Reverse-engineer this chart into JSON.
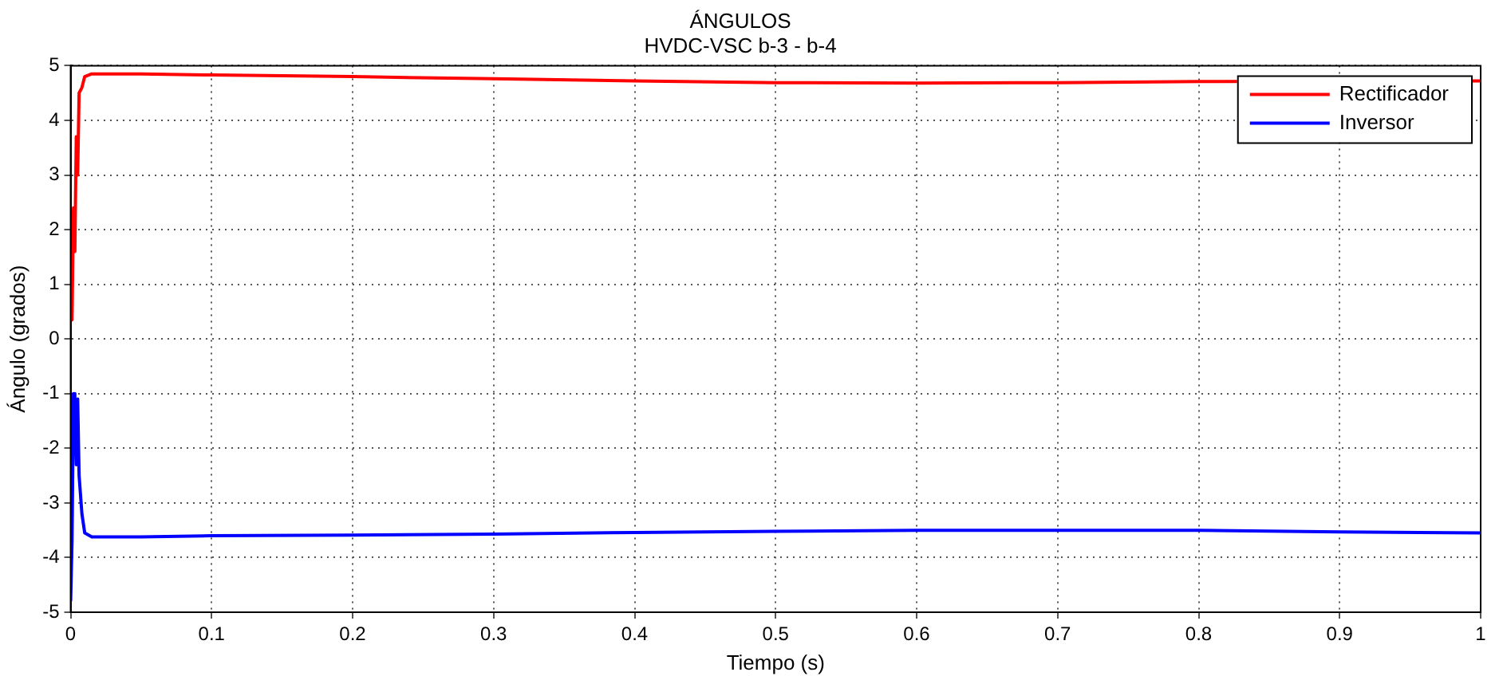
{
  "chart_data": {
    "type": "line",
    "title": "ÁNGULOS",
    "subtitle": "HVDC-VSC b-3 - b-4",
    "xlabel": "Tiempo (s)",
    "ylabel": "Ángulo (grados)",
    "xlim": [
      0,
      1
    ],
    "xticks": [
      0,
      0.1,
      0.2,
      0.3,
      0.4,
      0.5,
      0.6,
      0.7,
      0.8,
      0.9,
      1
    ],
    "ylim": [
      -5,
      5
    ],
    "yticks": [
      -5,
      -4,
      -3,
      -2,
      -1,
      0,
      1,
      2,
      3,
      4,
      5
    ],
    "grid": true,
    "legend": "top right",
    "marker": "none",
    "line_style": "solid",
    "series": [
      {
        "name": "Rectificador",
        "color": "#ff0000",
        "x": [
          0,
          0.001,
          0.002,
          0.003,
          0.004,
          0.005,
          0.006,
          0.008,
          0.01,
          0.015,
          0.05,
          0.1,
          0.2,
          0.3,
          0.4,
          0.5,
          0.6,
          0.7,
          0.8,
          1
        ],
        "values": [
          0.4,
          0.35,
          2.4,
          1.6,
          3.7,
          3.0,
          4.5,
          4.6,
          4.8,
          4.85,
          4.85,
          4.83,
          4.8,
          4.76,
          4.72,
          4.69,
          4.68,
          4.69,
          4.71,
          4.72
        ]
      },
      {
        "name": "Inversor",
        "color": "#0000ff",
        "x": [
          0,
          0.001,
          0.002,
          0.003,
          0.004,
          0.005,
          0.006,
          0.008,
          0.01,
          0.015,
          0.05,
          0.1,
          0.2,
          0.3,
          0.4,
          0.5,
          0.6,
          0.7,
          0.8,
          0.9,
          1
        ],
        "values": [
          -4.8,
          -3.7,
          -1,
          -1.1,
          -2.3,
          -1.1,
          -2.5,
          -3.2,
          -3.55,
          -3.62,
          -3.62,
          -3.6,
          -3.59,
          -3.57,
          -3.54,
          -3.52,
          -3.5,
          -3.5,
          -3.5,
          -3.53,
          -3.55
        ]
      }
    ]
  }
}
